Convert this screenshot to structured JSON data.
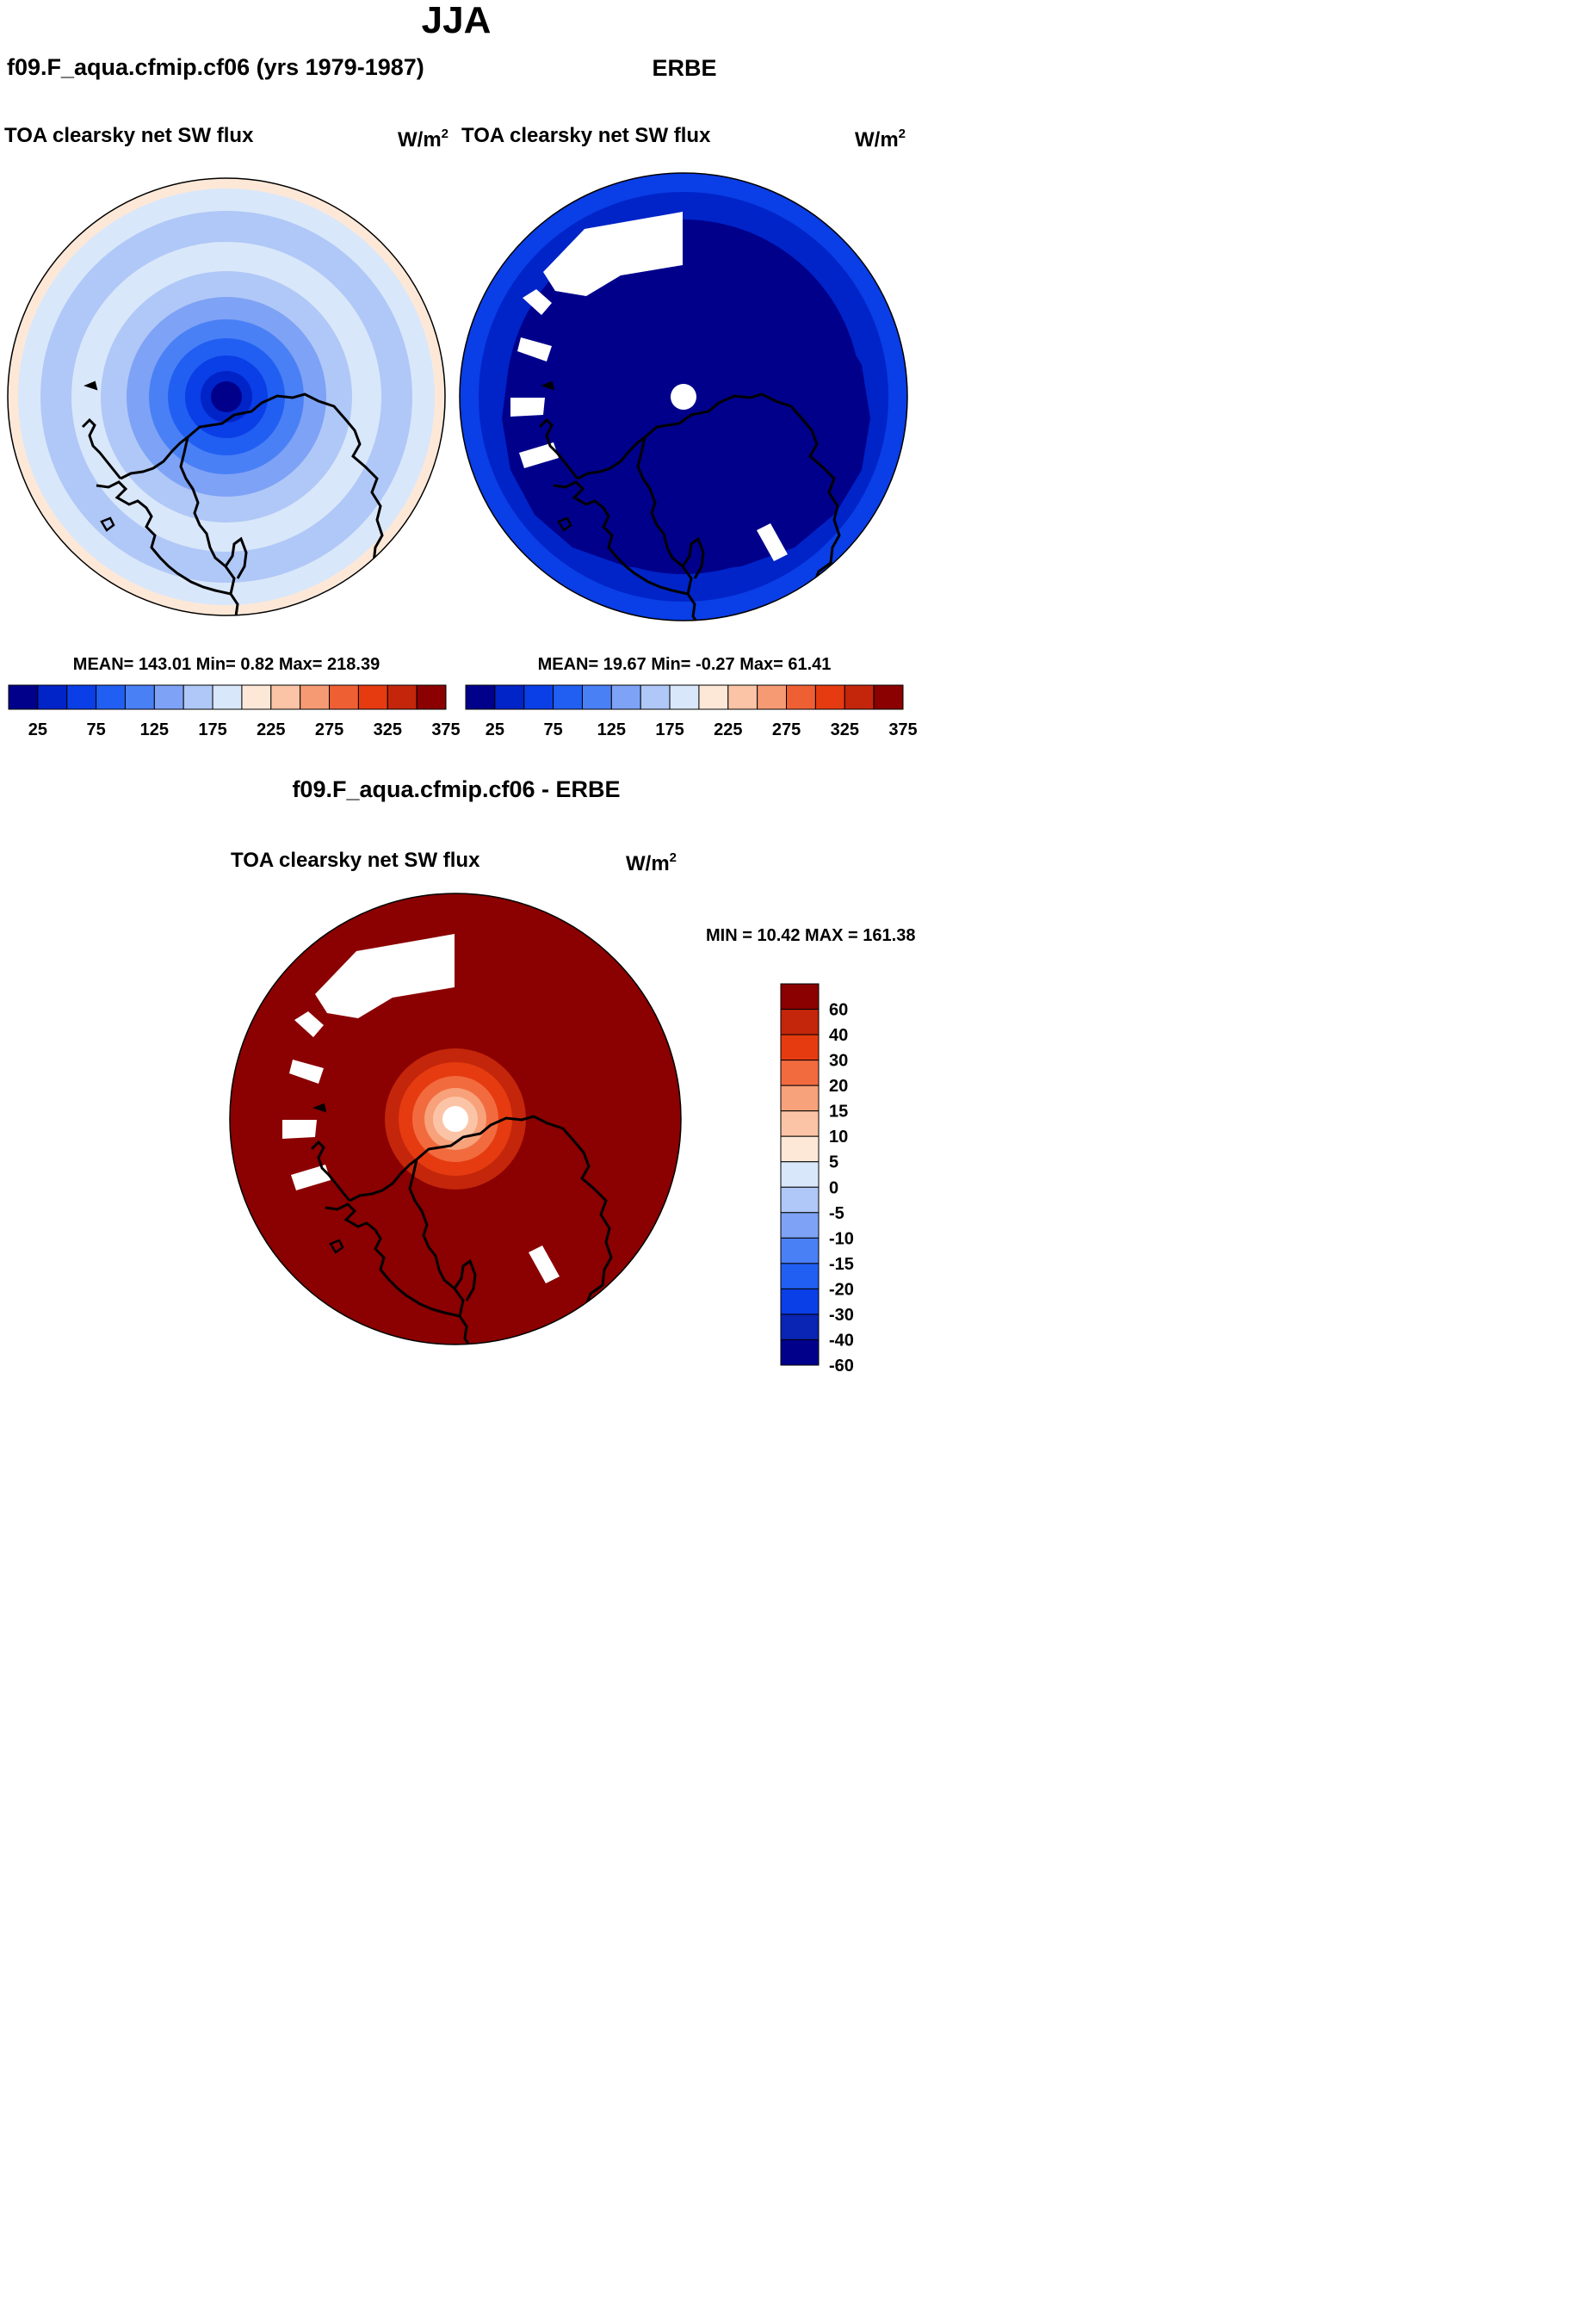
{
  "page_title": "JJA",
  "colors": {
    "abs_scale": [
      "#00008b",
      "#0024c8",
      "#0a3ee6",
      "#215ff2",
      "#4a80f5",
      "#7ea2f5",
      "#b0c8f7",
      "#d9e7fa",
      "#fde8d8",
      "#fbc4a6",
      "#f59a73",
      "#ef5f34",
      "#e63b10",
      "#c3260b",
      "#8b0000"
    ],
    "diff_scale": [
      "#00008b",
      "#0a24b3",
      "#0a3ee6",
      "#215ff2",
      "#4a80f5",
      "#7ea2f5",
      "#b0c8f7",
      "#d9e7fa",
      "#fde8d8",
      "#fbc4a6",
      "#f7a27a",
      "#f26b3f",
      "#e63b10",
      "#c3260b",
      "#8b0000"
    ],
    "missing": "#ffffff",
    "coast": "#000000"
  },
  "chart_data": [
    {
      "type": "heatmap",
      "projection": "south-polar-stereographic",
      "header": "f09.F_aqua.cfmip.cf06 (yrs 1979-1987)",
      "title": "TOA clearsky net SW flux",
      "units_base": "W/m",
      "units_exp": "2",
      "stats": {
        "mean_label": "MEAN=",
        "mean": "143.01",
        "min_label": "Min=",
        "min": "0.82",
        "max_label": "Max=",
        "max": "218.39"
      },
      "colorbar": {
        "orientation": "horizontal",
        "levels": [
          25,
          50,
          75,
          100,
          125,
          150,
          175,
          200,
          225,
          250,
          275,
          300,
          325,
          350,
          375
        ],
        "tick_labels": [
          "25",
          "75",
          "125",
          "175",
          "225",
          "275",
          "325",
          "375"
        ]
      },
      "rings": [
        {
          "color_index": 8,
          "value_range": [
            200,
            225
          ]
        },
        {
          "color_index": 7,
          "value_range": [
            175,
            200
          ]
        },
        {
          "color_index": 6,
          "value_range": [
            150,
            175
          ]
        },
        {
          "color_index": 7,
          "value_range": [
            175,
            200
          ]
        },
        {
          "color_index": 6,
          "value_range": [
            150,
            175
          ]
        },
        {
          "color_index": 5,
          "value_range": [
            125,
            150
          ]
        },
        {
          "color_index": 4,
          "value_range": [
            100,
            125
          ]
        },
        {
          "color_index": 3,
          "value_range": [
            75,
            100
          ]
        },
        {
          "color_index": 2,
          "value_range": [
            50,
            75
          ]
        },
        {
          "color_index": 1,
          "value_range": [
            25,
            50
          ]
        },
        {
          "color_index": 0,
          "value_range": [
            0,
            25
          ]
        }
      ]
    },
    {
      "type": "heatmap",
      "projection": "south-polar-stereographic",
      "header": "ERBE",
      "title": "TOA clearsky net SW flux",
      "units_base": "W/m",
      "units_exp": "2",
      "stats": {
        "mean_label": "MEAN=",
        "mean": "19.67",
        "min_label": "Min=",
        "min": "-0.27",
        "max_label": "Max=",
        "max": "61.41"
      },
      "colorbar": {
        "orientation": "horizontal",
        "levels": [
          25,
          50,
          75,
          100,
          125,
          150,
          175,
          200,
          225,
          250,
          275,
          300,
          325,
          350,
          375
        ],
        "tick_labels": [
          "25",
          "75",
          "125",
          "175",
          "225",
          "275",
          "325",
          "375"
        ]
      },
      "rings": [
        {
          "color_index": 2,
          "value_range": [
            50,
            75
          ]
        },
        {
          "color_index": 1,
          "value_range": [
            25,
            50
          ]
        },
        {
          "color_index": 0,
          "value_range": [
            0,
            25
          ]
        }
      ],
      "missing_data": "white gaps"
    },
    {
      "type": "heatmap",
      "projection": "south-polar-stereographic",
      "header": "f09.F_aqua.cfmip.cf06 - ERBE",
      "title": "TOA clearsky net SW flux",
      "units_base": "W/m",
      "units_exp": "2",
      "stats": {
        "text": "MIN =  10.42 MAX = 161.38",
        "min": "10.42",
        "max": "161.38"
      },
      "colorbar": {
        "orientation": "vertical",
        "levels": [
          -60,
          -40,
          -30,
          -20,
          -15,
          -10,
          -5,
          0,
          5,
          10,
          15,
          20,
          30,
          40,
          60
        ],
        "tick_labels": [
          "60",
          "40",
          "30",
          "20",
          "15",
          "10",
          "5",
          "0",
          "-5",
          "-10",
          "-15",
          "-20",
          "-30",
          "-40",
          "-60"
        ]
      },
      "rings": [
        {
          "color_index": 14,
          "value_range": [
            60,
            161.38
          ]
        },
        {
          "color_index": 13,
          "value_range": [
            40,
            60
          ]
        },
        {
          "color_index": 12,
          "value_range": [
            30,
            40
          ]
        },
        {
          "color_index": 11,
          "value_range": [
            20,
            30
          ]
        },
        {
          "color_index": 10,
          "value_range": [
            15,
            20
          ]
        },
        {
          "color_index": 9,
          "value_range": [
            10,
            15
          ]
        }
      ],
      "missing_data": "white gaps"
    }
  ]
}
